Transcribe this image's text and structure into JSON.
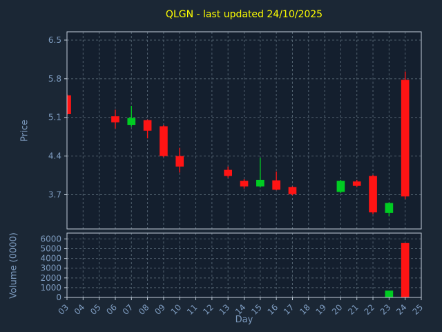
{
  "colors": {
    "figure_bg": "#1b2735",
    "plot_bg": "#141f2e",
    "grid": "#51616f",
    "spine": "#c3cedb",
    "tick": "#7e9cc0",
    "title": "#ffff00",
    "axis_label": "#7e9cc0",
    "up": "#00cc22",
    "down": "#ff1414"
  },
  "chart_data": {
    "type": "candlestick",
    "title": "QLGN - last updated 24/10/2025",
    "xlabel": "Day",
    "ylabel_price": "Price",
    "ylabel_volume": "Volume (0000)",
    "legend": false,
    "grid": true,
    "x_ticks": [
      "03",
      "04",
      "05",
      "06",
      "07",
      "08",
      "09",
      "10",
      "11",
      "12",
      "13",
      "14",
      "15",
      "16",
      "17",
      "18",
      "19",
      "20",
      "21",
      "22",
      "23",
      "24",
      "25"
    ],
    "x_range": [
      3,
      25
    ],
    "price_yticks": [
      "6.5",
      "5.8",
      "5.1",
      "4.4",
      "3.7"
    ],
    "price_ylim": [
      3.08,
      6.65
    ],
    "volume_yticks": [
      "6000",
      "5000",
      "4000",
      "3000",
      "2000",
      "1000",
      "0"
    ],
    "volume_ylim": [
      0,
      6600
    ],
    "candles": [
      {
        "day": 3,
        "open": 5.5,
        "high": 5.52,
        "low": 5.14,
        "close": 5.16,
        "volume": 0
      },
      {
        "day": 6,
        "open": 5.12,
        "high": 5.24,
        "low": 4.9,
        "close": 5.01,
        "volume": 0
      },
      {
        "day": 7,
        "open": 4.96,
        "high": 5.31,
        "low": 4.93,
        "close": 5.09,
        "volume": 0
      },
      {
        "day": 8,
        "open": 5.05,
        "high": 5.06,
        "low": 4.72,
        "close": 4.86,
        "volume": 0
      },
      {
        "day": 9,
        "open": 4.94,
        "high": 4.96,
        "low": 4.38,
        "close": 4.4,
        "volume": 0
      },
      {
        "day": 10,
        "open": 4.4,
        "high": 4.55,
        "low": 4.1,
        "close": 4.21,
        "volume": 0
      },
      {
        "day": 13,
        "open": 4.15,
        "high": 4.21,
        "low": 4.01,
        "close": 4.04,
        "volume": 0
      },
      {
        "day": 14,
        "open": 3.95,
        "high": 3.98,
        "low": 3.81,
        "close": 3.85,
        "volume": 0
      },
      {
        "day": 15,
        "open": 3.85,
        "high": 4.37,
        "low": 3.83,
        "close": 3.97,
        "volume": 0
      },
      {
        "day": 16,
        "open": 3.96,
        "high": 4.12,
        "low": 3.78,
        "close": 3.79,
        "volume": 0
      },
      {
        "day": 17,
        "open": 3.84,
        "high": 3.85,
        "low": 3.69,
        "close": 3.71,
        "volume": 0
      },
      {
        "day": 20,
        "open": 3.75,
        "high": 3.97,
        "low": 3.73,
        "close": 3.95,
        "volume": 0
      },
      {
        "day": 21,
        "open": 3.94,
        "high": 3.97,
        "low": 3.84,
        "close": 3.86,
        "volume": 0
      },
      {
        "day": 22,
        "open": 4.04,
        "high": 4.06,
        "low": 3.35,
        "close": 3.38,
        "volume": 0
      },
      {
        "day": 23,
        "open": 3.37,
        "high": 3.56,
        "low": 3.31,
        "close": 3.55,
        "volume": 700
      },
      {
        "day": 24,
        "open": 5.78,
        "high": 5.93,
        "low": 3.62,
        "close": 3.67,
        "volume": 5600
      }
    ]
  }
}
